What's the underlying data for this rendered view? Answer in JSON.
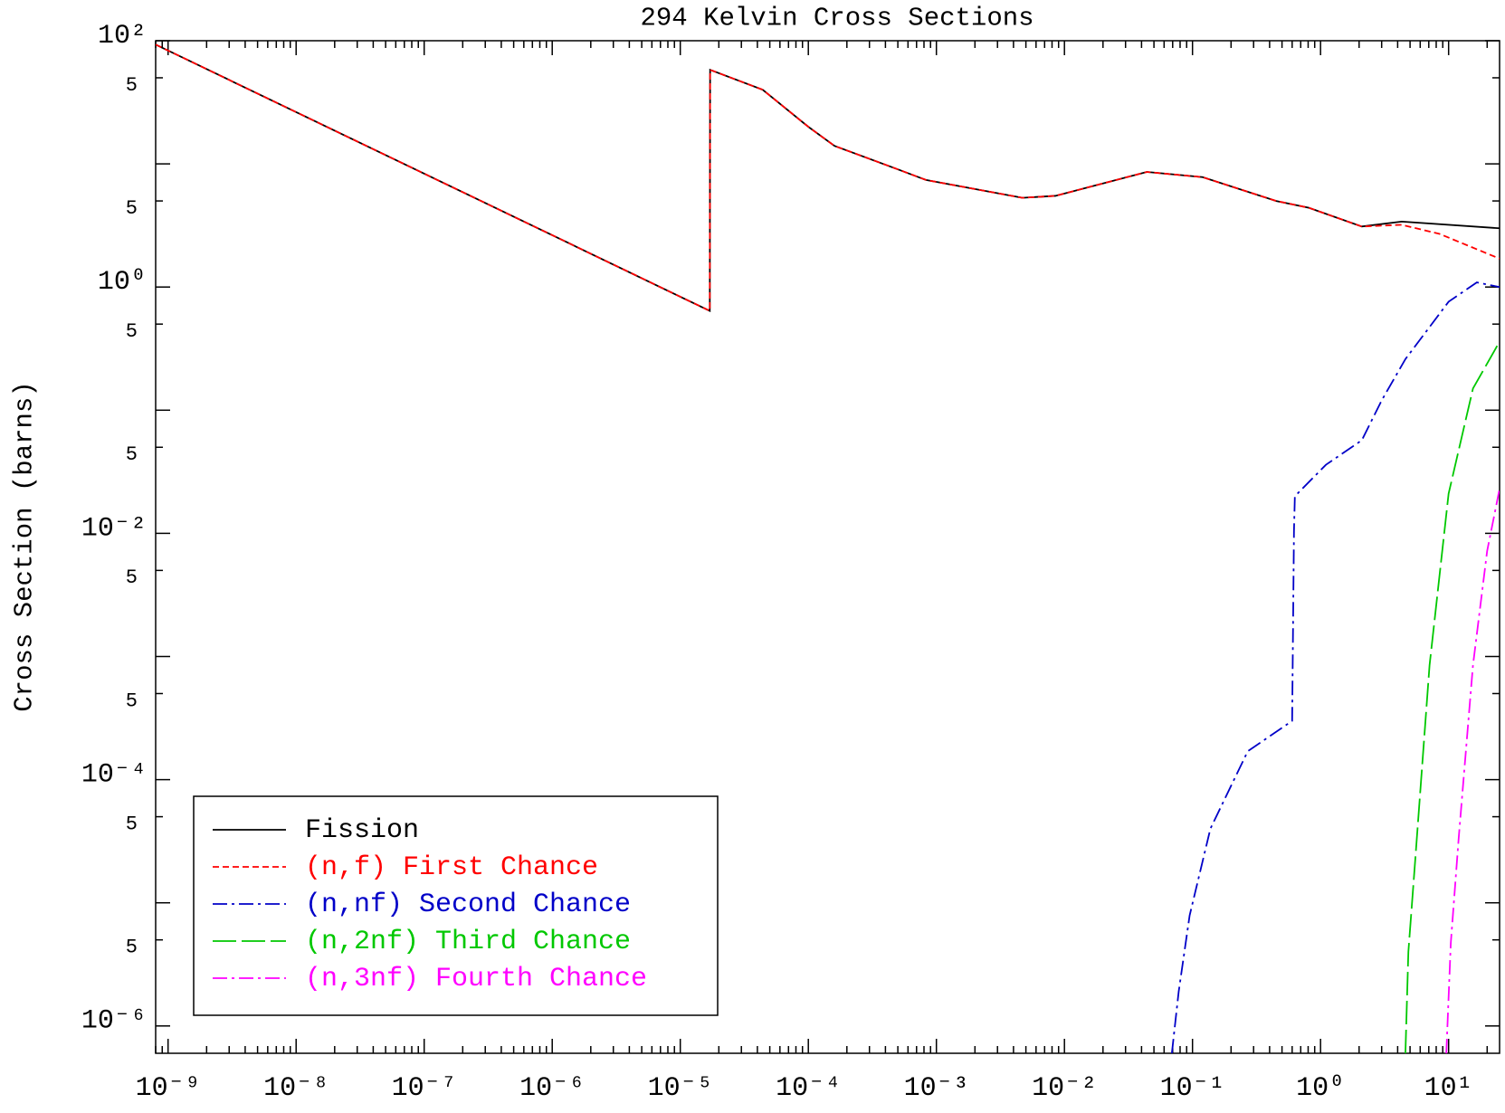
{
  "chart_data": {
    "type": "line",
    "title": "294 Kelvin Cross Sections",
    "ylabel": "Cross Section (barns)",
    "xscale": "log",
    "yscale": "log",
    "xlim": [
      8e-10,
      25
    ],
    "ylim": [
      6e-07,
      100
    ],
    "xticks": [
      {
        "value": 1e-09,
        "label": "10⁻⁹"
      },
      {
        "value": 1e-08,
        "label": "10⁻⁸"
      },
      {
        "value": 1e-07,
        "label": "10⁻⁷"
      },
      {
        "value": 1e-06,
        "label": "10⁻⁶"
      },
      {
        "value": 1e-05,
        "label": "10⁻⁵"
      },
      {
        "value": 0.0001,
        "label": "10⁻⁴"
      },
      {
        "value": 0.001,
        "label": "10⁻³"
      },
      {
        "value": 0.01,
        "label": "10⁻²"
      },
      {
        "value": 0.1,
        "label": "10⁻¹"
      },
      {
        "value": 1,
        "label": "10⁰"
      },
      {
        "value": 10,
        "label": "10¹"
      }
    ],
    "yticks": [
      {
        "value": 100,
        "label": "10²"
      },
      {
        "value": 50,
        "label": "5"
      },
      {
        "value": 5,
        "label": "5"
      },
      {
        "value": 1,
        "label": "10⁰"
      },
      {
        "value": 0.5,
        "label": "5"
      },
      {
        "value": 0.05,
        "label": "5"
      },
      {
        "value": 0.01,
        "label": "10⁻²"
      },
      {
        "value": 0.005,
        "label": "5"
      },
      {
        "value": 0.0005,
        "label": "5"
      },
      {
        "value": 0.0001,
        "label": "10⁻⁴"
      },
      {
        "value": 5e-05,
        "label": "5"
      },
      {
        "value": 5e-06,
        "label": "5"
      },
      {
        "value": 1e-06,
        "label": "10⁻⁶"
      }
    ],
    "legend": "lower left",
    "series": [
      {
        "name": "Fission",
        "color": "#000000",
        "dash": "solid",
        "x": [
          8e-10,
          1.7e-05,
          1.71e-05,
          4.4e-05,
          0.0001,
          0.00016,
          0.00049,
          0.00083,
          0.0047,
          0.0085,
          0.044,
          0.12,
          0.45,
          0.81,
          2.1,
          4.3,
          25
        ],
        "values": [
          93,
          0.64,
          58,
          40,
          20,
          14,
          9.1,
          7.4,
          5.3,
          5.5,
          8.6,
          7.8,
          5.0,
          4.4,
          3.1,
          3.4,
          3.0
        ]
      },
      {
        "name": "(n,f) First Chance",
        "color": "#ff0000",
        "dash": "dashed",
        "x": [
          8e-10,
          1.7e-05,
          1.71e-05,
          4.4e-05,
          0.0001,
          0.00016,
          0.00049,
          0.00083,
          0.0047,
          0.0085,
          0.044,
          0.12,
          0.45,
          0.81,
          2.1,
          4.3,
          8.5,
          25
        ],
        "values": [
          93,
          0.64,
          58,
          40,
          20,
          14,
          9.1,
          7.4,
          5.3,
          5.5,
          8.6,
          7.8,
          5.0,
          4.4,
          3.1,
          3.2,
          2.7,
          1.7
        ]
      },
      {
        "name": "(n,nf) Second Chance",
        "color": "#0000c8",
        "dash": "dashdot",
        "x": [
          0.069,
          0.078,
          0.095,
          0.138,
          0.27,
          0.6,
          0.62,
          0.63,
          1.1,
          2.1,
          3.0,
          4.6,
          10,
          16.6,
          25
        ],
        "values": [
          6e-07,
          1.9e-06,
          7.9e-06,
          4e-05,
          0.00017,
          0.0003,
          0.0104,
          0.02,
          0.036,
          0.057,
          0.12,
          0.26,
          0.76,
          1.09,
          1.0
        ]
      },
      {
        "name": "(n,2nf) Third Chance",
        "color": "#00c800",
        "dash": "longdash",
        "x": [
          4.6,
          4.85,
          5.5,
          7.1,
          10,
          15.5,
          25
        ],
        "values": [
          6e-07,
          4e-06,
          2.3e-05,
          0.00085,
          0.021,
          0.15,
          0.36
        ]
      },
      {
        "name": "(n,3nf) Fourth Chance",
        "color": "#ff00ff",
        "dash": "dashdot",
        "x": [
          9.6,
          10.4,
          12,
          15.5,
          20,
          25
        ],
        "values": [
          6e-07,
          4.7e-06,
          3.4e-05,
          0.00085,
          0.0072,
          0.023
        ]
      }
    ]
  }
}
